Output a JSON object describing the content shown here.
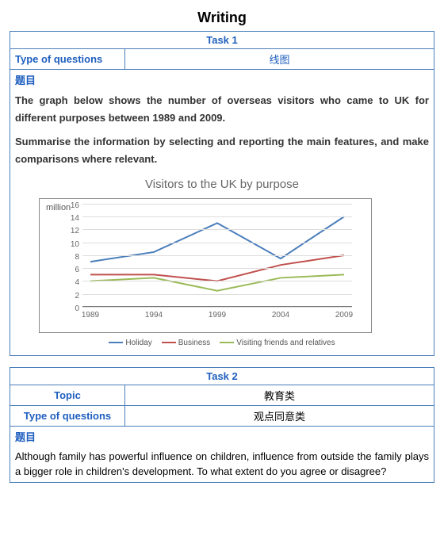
{
  "page": {
    "title": "Writing"
  },
  "task1": {
    "header": "Task 1",
    "row_type_label": "Type of questions",
    "row_type_value": "线图",
    "topic_label": "题目",
    "prompt_p1": "The graph below shows the number of overseas visitors who came to UK for different purposes between 1989 and 2009.",
    "prompt_p2": "Summarise the information by selecting and reporting the main features, and make comparisons where relevant.",
    "chart": {
      "type": "line",
      "title": "Visitors to the UK by purpose",
      "y_axis_label": "million",
      "ylim": [
        0,
        16
      ],
      "ytick_step": 2,
      "categories": [
        "1989",
        "1994",
        "1999",
        "2004",
        "2009"
      ],
      "background_color": "#ffffff",
      "grid_color": "#dddddd",
      "axis_color": "#777777",
      "series": [
        {
          "name": "Holiday",
          "color": "#4a7ebb",
          "values": [
            7,
            8.5,
            13,
            7.5,
            14
          ]
        },
        {
          "name": "Business",
          "color": "#c0504d",
          "values": [
            5,
            5,
            4,
            6.5,
            8
          ]
        },
        {
          "name": "Visiting friends and relatives",
          "color": "#9bbb59",
          "values": [
            4,
            4.5,
            2.5,
            4.5,
            5
          ]
        }
      ],
      "title_fontsize": 15,
      "label_fontsize": 10,
      "line_width": 2
    }
  },
  "task2": {
    "header": "Task 2",
    "row_topic_label": "Topic",
    "row_topic_value": "教育类",
    "row_type_label": "Type of questions",
    "row_type_value": "观点同意类",
    "topic_label": "题目",
    "prompt": "Although family has powerful influence on children, influence from outside the family plays a bigger role in children's development. To what extent do you agree or disagree?"
  }
}
